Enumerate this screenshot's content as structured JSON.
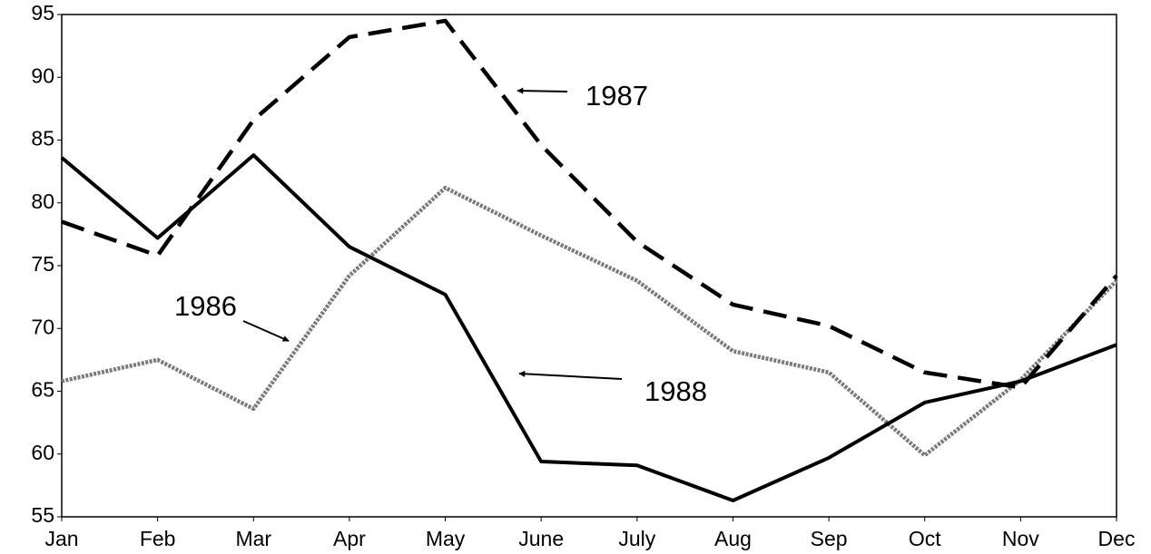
{
  "chart_data": {
    "type": "line",
    "categories": [
      "Jan",
      "Feb",
      "Mar",
      "Apr",
      "May",
      "June",
      "July",
      "Aug",
      "Sep",
      "Oct",
      "Nov",
      "Dec"
    ],
    "series": [
      {
        "name": "1986",
        "color": "#7a7a7a",
        "style": "dotted",
        "values": [
          65.8,
          67.5,
          63.6,
          74.2,
          81.2,
          77.4,
          73.8,
          68.2,
          66.5,
          59.9,
          65.9,
          73.8
        ]
      },
      {
        "name": "1987",
        "color": "#000000",
        "style": "dashed",
        "values": [
          78.5,
          75.8,
          86.6,
          93.2,
          94.5,
          84.6,
          76.9,
          71.9,
          70.2,
          66.5,
          65.3,
          74.2
        ]
      },
      {
        "name": "1988",
        "color": "#000000",
        "style": "solid",
        "values": [
          83.6,
          77.2,
          83.8,
          76.5,
          72.7,
          59.4,
          59.1,
          56.3,
          59.7,
          64.1,
          65.8,
          68.7
        ]
      }
    ],
    "ylim": [
      55,
      95
    ],
    "yticks": [
      55,
      60,
      65,
      70,
      75,
      80,
      85,
      90,
      95
    ],
    "grid": false
  }
}
